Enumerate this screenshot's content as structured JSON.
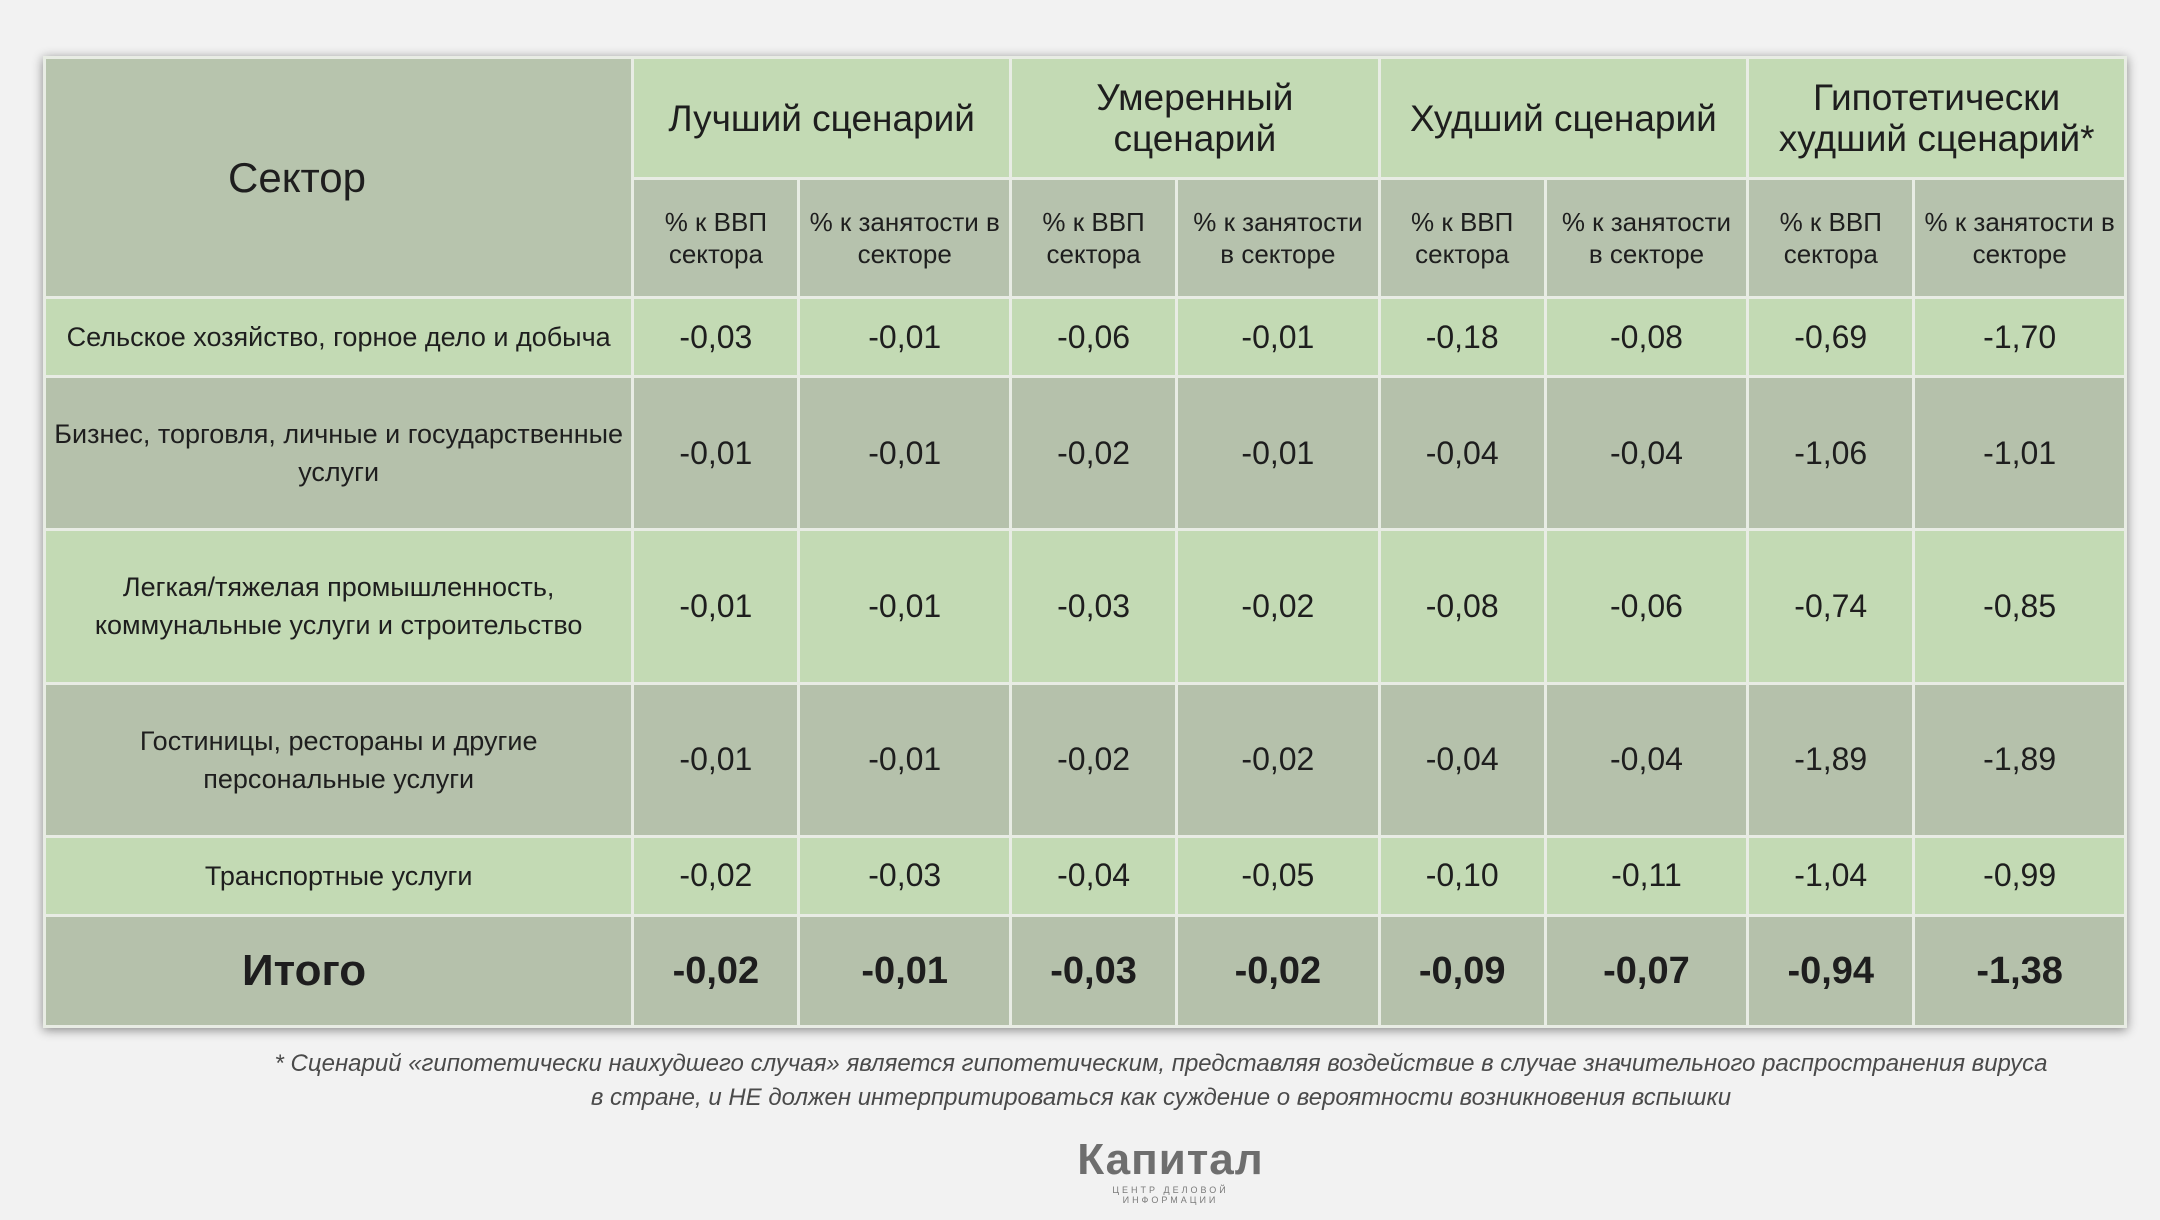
{
  "table": {
    "corner_label": "Сектор",
    "scenarios": [
      "Лучший сценарий",
      "Умеренный сценарий",
      "Худший сценарий",
      "Гипотетически худший сценарий*"
    ],
    "sub_headers": [
      "% к ВВП сектора",
      "% к занятости в секторе",
      "% к ВВП сектора",
      "% к занятости в секторе",
      "% к ВВП сектора",
      "% к занятости в секторе",
      "% к ВВП сектора",
      "% к занятости в секторе"
    ],
    "rows": [
      {
        "sector": "Сельское хозяйство, горное дело и добыча",
        "values": [
          "-0,03",
          "-0,01",
          "-0,06",
          "-0,01",
          "-0,18",
          "-0,08",
          "-0,69",
          "-1,70"
        ]
      },
      {
        "sector": "Бизнес, торговля, личные и государственные услуги",
        "values": [
          "-0,01",
          "-0,01",
          "-0,02",
          "-0,01",
          "-0,04",
          "-0,04",
          "-1,06",
          "-1,01"
        ]
      },
      {
        "sector": "Легкая/тяжелая промышленность, коммунальные услуги и строительство",
        "values": [
          "-0,01",
          "-0,01",
          "-0,03",
          "-0,02",
          "-0,08",
          "-0,06",
          "-0,74",
          "-0,85"
        ]
      },
      {
        "sector": "Гостиницы, рестораны и другие персональные услуги",
        "values": [
          "-0,01",
          "-0,01",
          "-0,02",
          "-0,02",
          "-0,04",
          "-0,04",
          "-1,89",
          "-1,89"
        ]
      },
      {
        "sector": "Транспортные услуги",
        "values": [
          "-0,02",
          "-0,03",
          "-0,04",
          "-0,05",
          "-0,10",
          "-0,11",
          "-1,04",
          "-0,99"
        ]
      }
    ],
    "total": {
      "label": "Итого",
      "values": [
        "-0,02",
        "-0,01",
        "-0,03",
        "-0,02",
        "-0,09",
        "-0,07",
        "-0,94",
        "-1,38"
      ]
    }
  },
  "footnote": {
    "line1": "* Сценарий «гипотетически наихудшего случая» является гипотетическим, представляя воздействие в случае значительного распространения вируса",
    "line2": "в стране, и НЕ должен интерпритироваться как суждение о вероятности возникновения вспышки"
  },
  "logo": {
    "name": "Капитал",
    "tagline": "ЦЕНТР ДЕЛОВОЙ ИНФОРМАЦИИ"
  },
  "colors": {
    "header_light": "#c3dab4",
    "header_dark": "#b6c2ad",
    "row_light": "#c3dab4",
    "row_dark": "#b5c1ab"
  }
}
